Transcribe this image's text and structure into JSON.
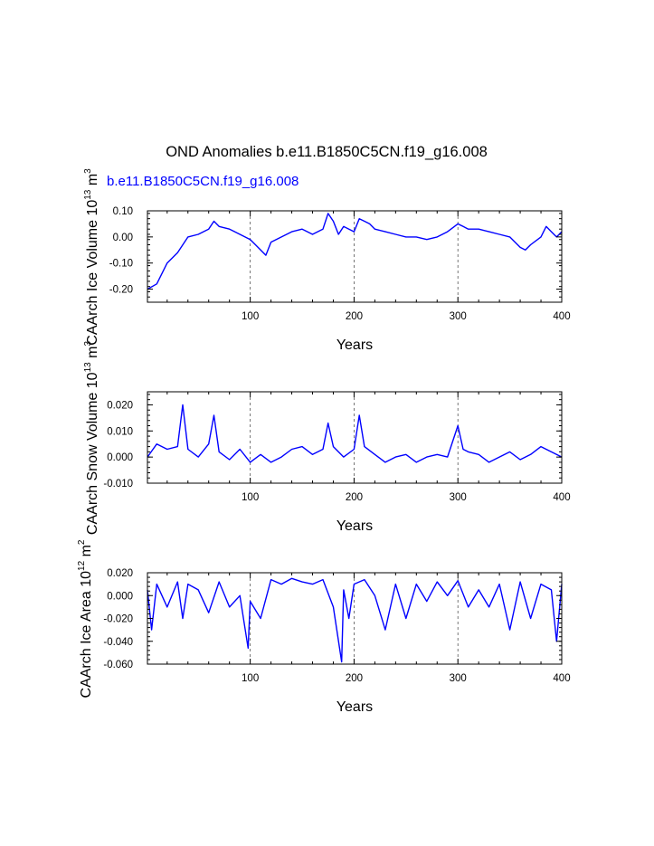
{
  "figure": {
    "title": "OND Anomalies b.e11.B1850C5CN.f19_g16.008",
    "case_label": "b.e11.B1850C5CN.f19_g16.008",
    "line_color": "#0000ff"
  },
  "chart_data": [
    {
      "type": "line",
      "panel": "ice-volume",
      "title": "",
      "xlabel": "Years",
      "ylabel": "CAArch Ice Volume 10",
      "ylabel_exp": "13",
      "ylabel_unit": " m",
      "ylabel_unit_exp": "3",
      "xlim": [
        1,
        400
      ],
      "ylim": [
        -0.25,
        0.1
      ],
      "xticks": [
        100,
        200,
        300,
        400
      ],
      "xtick_labels": [
        "100",
        "200",
        "300",
        "400"
      ],
      "yticks": [
        0.1,
        0.0,
        -0.1,
        -0.2
      ],
      "ytick_labels": [
        "0.10",
        "0.00",
        "-0.10",
        "-0.20"
      ],
      "grid": "dashed vertical at 100, 200, 300",
      "series": [
        {
          "name": "CAArch Ice Volume",
          "x": [
            1,
            10,
            20,
            30,
            40,
            50,
            60,
            65,
            70,
            80,
            90,
            100,
            105,
            110,
            115,
            120,
            130,
            140,
            150,
            160,
            170,
            175,
            180,
            185,
            190,
            200,
            205,
            210,
            215,
            220,
            230,
            240,
            250,
            260,
            270,
            280,
            290,
            300,
            305,
            310,
            320,
            330,
            340,
            350,
            360,
            365,
            370,
            380,
            385,
            390,
            395,
            400
          ],
          "values": [
            -0.2,
            -0.18,
            -0.1,
            -0.06,
            0.0,
            0.01,
            0.03,
            0.06,
            0.04,
            0.03,
            0.01,
            -0.01,
            -0.03,
            -0.05,
            -0.07,
            -0.02,
            0.0,
            0.02,
            0.03,
            0.01,
            0.03,
            0.09,
            0.06,
            0.01,
            0.04,
            0.02,
            0.07,
            0.06,
            0.05,
            0.03,
            0.02,
            0.01,
            0.0,
            0.0,
            -0.01,
            0.0,
            0.02,
            0.05,
            0.04,
            0.03,
            0.03,
            0.02,
            0.01,
            0.0,
            -0.04,
            -0.05,
            -0.03,
            0.0,
            0.04,
            0.02,
            0.0,
            0.02
          ]
        }
      ]
    },
    {
      "type": "line",
      "panel": "snow-volume",
      "title": "",
      "xlabel": "Years",
      "ylabel": "CAArch Snow Volume 10",
      "ylabel_exp": "13",
      "ylabel_unit": " m",
      "ylabel_unit_exp": "3",
      "xlim": [
        1,
        400
      ],
      "ylim": [
        -0.01,
        0.025
      ],
      "xticks": [
        100,
        200,
        300,
        400
      ],
      "xtick_labels": [
        "100",
        "200",
        "300",
        "400"
      ],
      "yticks": [
        0.02,
        0.01,
        0.0,
        -0.01
      ],
      "ytick_labels": [
        "0.020",
        "0.010",
        "0.000",
        "-0.010"
      ],
      "grid": "dashed vertical at 100, 200, 300",
      "series": [
        {
          "name": "CAArch Snow Volume",
          "x": [
            1,
            10,
            20,
            30,
            35,
            40,
            50,
            60,
            65,
            70,
            80,
            90,
            100,
            110,
            120,
            130,
            140,
            150,
            160,
            170,
            175,
            180,
            190,
            200,
            205,
            210,
            220,
            230,
            240,
            250,
            260,
            270,
            280,
            290,
            300,
            305,
            310,
            320,
            330,
            340,
            350,
            360,
            370,
            380,
            390,
            400
          ],
          "values": [
            0.0,
            0.005,
            0.003,
            0.004,
            0.02,
            0.003,
            0.0,
            0.005,
            0.016,
            0.002,
            -0.001,
            0.003,
            -0.002,
            0.001,
            -0.002,
            0.0,
            0.003,
            0.004,
            0.001,
            0.003,
            0.013,
            0.004,
            0.0,
            0.003,
            0.016,
            0.004,
            0.001,
            -0.002,
            0.0,
            0.001,
            -0.002,
            0.0,
            0.001,
            0.0,
            0.012,
            0.003,
            0.002,
            0.001,
            -0.002,
            0.0,
            0.002,
            -0.001,
            0.001,
            0.004,
            0.002,
            0.0
          ]
        }
      ]
    },
    {
      "type": "line",
      "panel": "ice-area",
      "title": "",
      "xlabel": "Years",
      "ylabel": "CAArch Ice Area 10",
      "ylabel_exp": "12",
      "ylabel_unit": " m",
      "ylabel_unit_exp": "2",
      "xlim": [
        1,
        400
      ],
      "ylim": [
        -0.06,
        0.02
      ],
      "xticks": [
        100,
        200,
        300,
        400
      ],
      "xtick_labels": [
        "100",
        "200",
        "300",
        "400"
      ],
      "yticks": [
        0.02,
        0.0,
        -0.02,
        -0.04,
        -0.06
      ],
      "ytick_labels": [
        "0.020",
        "0.000",
        "-0.020",
        "-0.040",
        "-0.060"
      ],
      "grid": "dashed vertical at 100, 200, 300",
      "series": [
        {
          "name": "CAArch Ice Area",
          "x": [
            1,
            5,
            10,
            20,
            30,
            35,
            40,
            50,
            60,
            70,
            80,
            90,
            98,
            100,
            110,
            120,
            130,
            140,
            150,
            160,
            170,
            180,
            188,
            190,
            195,
            200,
            210,
            220,
            230,
            240,
            250,
            260,
            270,
            280,
            290,
            300,
            310,
            320,
            330,
            340,
            350,
            360,
            370,
            380,
            390,
            395,
            400
          ],
          "values": [
            0.005,
            -0.03,
            0.01,
            -0.01,
            0.012,
            -0.02,
            0.01,
            0.005,
            -0.015,
            0.012,
            -0.01,
            0.0,
            -0.046,
            -0.005,
            -0.02,
            0.014,
            0.01,
            0.015,
            0.012,
            0.01,
            0.014,
            -0.01,
            -0.058,
            0.005,
            -0.02,
            0.01,
            0.014,
            0.0,
            -0.03,
            0.01,
            -0.02,
            0.01,
            -0.005,
            0.012,
            0.0,
            0.013,
            -0.01,
            0.005,
            -0.01,
            0.01,
            -0.03,
            0.012,
            -0.02,
            0.01,
            0.005,
            -0.04,
            0.01
          ]
        }
      ]
    }
  ]
}
